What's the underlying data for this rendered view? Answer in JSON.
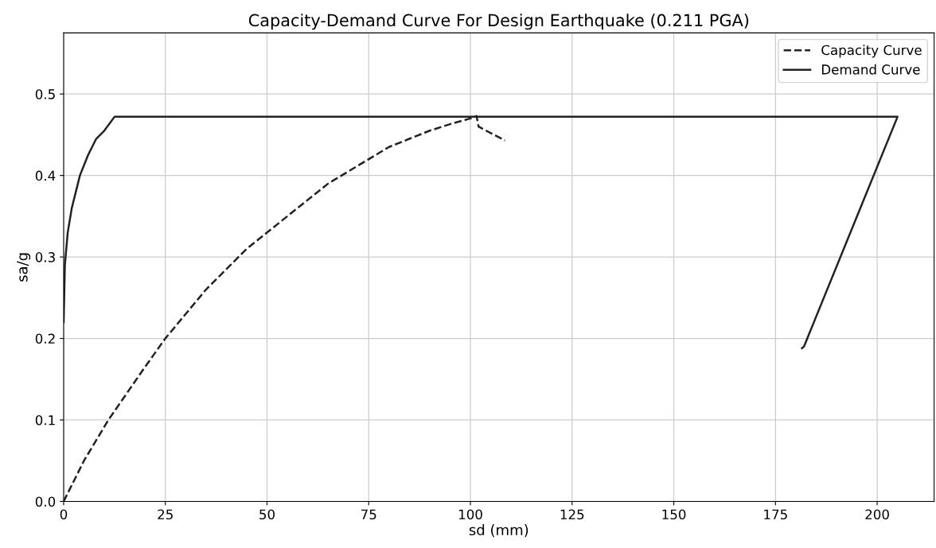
{
  "chart_data": {
    "type": "line",
    "title": "Capacity-Demand Curve For Design Earthquake (0.211 PGA)",
    "xlabel": "sd (mm)",
    "ylabel": "sa/g",
    "xlim": [
      0,
      214
    ],
    "ylim": [
      0,
      0.575
    ],
    "xticks": [
      0,
      25,
      50,
      75,
      100,
      125,
      150,
      175,
      200
    ],
    "yticks": [
      {
        "value": 0,
        "label": "0.0"
      },
      0.1,
      0.2,
      0.3,
      0.4,
      0.5
    ],
    "grid": true,
    "legend": "top right",
    "series": [
      {
        "name": "Capacity Curve",
        "color": "#222222",
        "line_style": "dashed",
        "x": [
          0,
          5,
          11,
          20,
          25,
          30,
          35,
          40,
          45,
          50,
          55,
          60,
          65,
          70,
          75,
          80,
          85,
          90,
          95,
          100,
          101.5,
          102,
          105,
          108.5
        ],
        "values": [
          0,
          0.05,
          0.1,
          0.165,
          0.2,
          0.23,
          0.26,
          0.285,
          0.31,
          0.33,
          0.35,
          0.37,
          0.39,
          0.405,
          0.42,
          0.435,
          0.445,
          0.455,
          0.463,
          0.47,
          0.473,
          0.46,
          0.452,
          0.443
        ]
      },
      {
        "name": "Demand Curve",
        "color": "#222222",
        "line_style": "solid",
        "x": [
          0,
          0.3,
          1,
          2,
          3,
          4,
          6,
          8,
          10,
          12.5,
          205,
          182,
          181.5
        ],
        "values": [
          0.22,
          0.29,
          0.33,
          0.36,
          0.38,
          0.4,
          0.425,
          0.445,
          0.455,
          0.472,
          0.472,
          0.19,
          0.188
        ]
      }
    ]
  }
}
